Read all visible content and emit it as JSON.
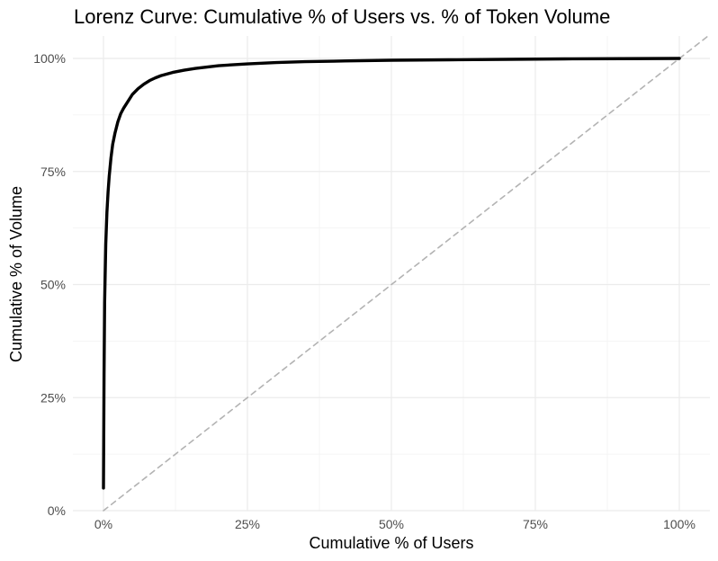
{
  "chart_data": {
    "type": "line",
    "title": "Lorenz Curve: Cumulative % of Users vs. % of Token Volume",
    "xlabel": "Cumulative % of Users",
    "ylabel": "Cumulative % of Volume",
    "xlim": [
      -0.015,
      1.05
    ],
    "ylim": [
      0,
      1.0
    ],
    "x_ticks": [
      0,
      0.25,
      0.5,
      0.75,
      1.0
    ],
    "x_tick_labels": [
      "0%",
      "25%",
      "50%",
      "75%",
      "100%"
    ],
    "y_ticks": [
      0,
      0.25,
      0.5,
      0.75,
      1.0
    ],
    "y_tick_labels": [
      "0%",
      "25%",
      "50%",
      "75%",
      "100%"
    ],
    "grid": true,
    "legend": "none",
    "series": [
      {
        "style": "solid",
        "color": "#000000",
        "x": [
          0.0,
          0.001,
          0.002,
          0.004,
          0.006,
          0.008,
          0.01,
          0.013,
          0.016,
          0.02,
          0.025,
          0.03,
          0.035,
          0.04,
          0.05,
          0.06,
          0.07,
          0.08,
          0.09,
          0.1,
          0.12,
          0.14,
          0.16,
          0.18,
          0.2,
          0.25,
          0.3,
          0.35,
          0.4,
          0.5,
          0.6,
          0.7,
          0.8,
          0.9,
          1.0
        ],
        "y": [
          0.05,
          0.3,
          0.46,
          0.59,
          0.66,
          0.705,
          0.74,
          0.78,
          0.81,
          0.835,
          0.86,
          0.878,
          0.89,
          0.9,
          0.92,
          0.933,
          0.943,
          0.951,
          0.957,
          0.962,
          0.969,
          0.974,
          0.978,
          0.981,
          0.984,
          0.988,
          0.991,
          0.993,
          0.994,
          0.996,
          0.997,
          0.998,
          0.999,
          0.9995,
          1.0
        ]
      },
      {
        "style": "dashed",
        "color": "#b3b3b3",
        "x": [
          0.0,
          1.05
        ],
        "y": [
          0.0,
          1.05
        ]
      }
    ]
  }
}
